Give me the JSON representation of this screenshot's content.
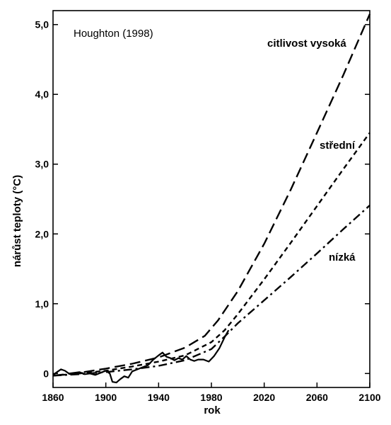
{
  "chart_data": {
    "type": "line",
    "annotation": "Houghton (1998)",
    "xlabel": "rok",
    "ylabel": "nárůst teploty (°C)",
    "xlim": [
      1860,
      2100
    ],
    "ylim": [
      -0.2,
      5.2
    ],
    "xticks": [
      1860,
      1900,
      1940,
      1980,
      2020,
      2060,
      2100
    ],
    "xtick_labels": [
      "1860",
      "1900",
      "1940",
      "1980",
      "2020",
      "2060",
      "2100"
    ],
    "yticks": [
      0,
      1,
      2,
      3,
      4,
      5
    ],
    "ytick_labels": [
      "0",
      "1,0",
      "2,0",
      "3,0",
      "4,0",
      "5,0"
    ],
    "grid": false,
    "series": [
      {
        "name": "citlivost vysoká",
        "style": "long-dash",
        "x": [
          1860,
          1880,
          1900,
          1920,
          1940,
          1960,
          1975,
          1985,
          2000,
          2020,
          2040,
          2060,
          2080,
          2100
        ],
        "y": [
          -0.03,
          0.01,
          0.07,
          0.14,
          0.23,
          0.37,
          0.54,
          0.76,
          1.18,
          1.86,
          2.63,
          3.45,
          4.28,
          5.15
        ]
      },
      {
        "name": "střední",
        "style": "short-dash",
        "x": [
          1860,
          1880,
          1900,
          1920,
          1940,
          1960,
          1980,
          1990,
          2000,
          2020,
          2040,
          2060,
          2080,
          2100
        ],
        "y": [
          -0.03,
          0.0,
          0.04,
          0.1,
          0.17,
          0.26,
          0.45,
          0.62,
          0.85,
          1.35,
          1.87,
          2.4,
          2.93,
          3.45
        ]
      },
      {
        "name": "nízká",
        "style": "dash-dot",
        "x": [
          1860,
          1880,
          1900,
          1920,
          1940,
          1960,
          1980,
          1990,
          2000,
          2020,
          2040,
          2060,
          2080,
          2100
        ],
        "y": [
          -0.03,
          -0.01,
          0.02,
          0.06,
          0.11,
          0.19,
          0.35,
          0.53,
          0.72,
          1.05,
          1.38,
          1.72,
          2.07,
          2.41
        ]
      },
      {
        "name": "",
        "style": "solid",
        "x": [
          1860,
          1863,
          1866,
          1869,
          1872,
          1876,
          1880,
          1884,
          1888,
          1892,
          1896,
          1900,
          1903,
          1905,
          1908,
          1911,
          1914,
          1917,
          1920,
          1924,
          1928,
          1932,
          1936,
          1940,
          1943,
          1946,
          1949,
          1952,
          1955,
          1958,
          1961,
          1964,
          1967,
          1970,
          1974,
          1978,
          1982,
          1986,
          1990,
          1993
        ],
        "y": [
          -0.02,
          0.02,
          0.06,
          0.04,
          0.0,
          0.01,
          0.02,
          -0.01,
          0.0,
          -0.02,
          0.01,
          0.04,
          0.0,
          -0.12,
          -0.13,
          -0.08,
          -0.04,
          -0.06,
          0.03,
          0.06,
          0.09,
          0.12,
          0.2,
          0.26,
          0.3,
          0.24,
          0.22,
          0.19,
          0.22,
          0.2,
          0.25,
          0.2,
          0.18,
          0.2,
          0.2,
          0.17,
          0.25,
          0.36,
          0.52,
          0.62
        ]
      }
    ]
  }
}
